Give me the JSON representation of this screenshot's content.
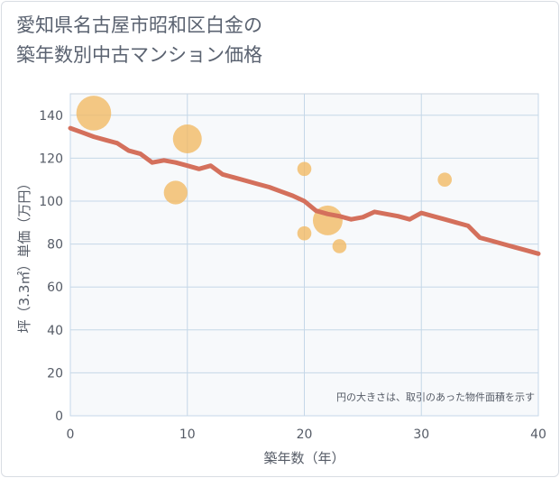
{
  "title_lines": [
    "愛知県名古屋市昭和区白金の",
    "築年数別中古マンション価格"
  ],
  "colors": {
    "line": "#d4705c",
    "bubble": "#f2b961",
    "grid": "#c5d7e8",
    "plot_bg": "#f7f9fb",
    "axis": "#555b66"
  },
  "chart_data": {
    "type": "scatter",
    "title": "愛知県名古屋市昭和区白金の築年数別中古マンション価格",
    "xlabel": "築年数（年）",
    "ylabel": "坪（3.3㎡）単価（万円）",
    "xlim": [
      0,
      40
    ],
    "ylim": [
      0,
      150
    ],
    "xticks": [
      0,
      10,
      20,
      30,
      40
    ],
    "yticks": [
      0,
      20,
      40,
      60,
      80,
      100,
      120,
      140
    ],
    "grid": true,
    "note": "円の大きさは、取引のあった物件面積を示す",
    "scatter_points": [
      {
        "x": 2,
        "y": 141,
        "size": 10
      },
      {
        "x": 9,
        "y": 104,
        "size": 4
      },
      {
        "x": 10,
        "y": 129,
        "size": 6.5
      },
      {
        "x": 20,
        "y": 115,
        "size": 1
      },
      {
        "x": 20,
        "y": 85,
        "size": 1
      },
      {
        "x": 22,
        "y": 91,
        "size": 7
      },
      {
        "x": 23,
        "y": 79,
        "size": 1
      },
      {
        "x": 32,
        "y": 110,
        "size": 1
      }
    ],
    "trend_line": {
      "x": [
        0,
        1,
        2,
        3,
        4,
        5,
        6,
        7,
        8,
        9,
        10,
        11,
        12,
        13,
        14,
        15,
        16,
        17,
        18,
        19,
        20,
        21,
        22,
        23,
        24,
        25,
        26,
        27,
        28,
        29,
        30,
        31,
        32,
        33,
        34,
        35,
        36,
        37,
        38,
        39,
        40
      ],
      "y": [
        134,
        132,
        130,
        128.5,
        127,
        123.5,
        122,
        118,
        119,
        118,
        116.5,
        115,
        116.5,
        112.5,
        111,
        109.5,
        108,
        106.5,
        104.5,
        102.5,
        100,
        95.5,
        94,
        93,
        91.5,
        92.5,
        95,
        94,
        93,
        91.5,
        94.5,
        93,
        91.5,
        90,
        88.5,
        83,
        81.5,
        80,
        78.5,
        77,
        75.5
      ]
    }
  }
}
